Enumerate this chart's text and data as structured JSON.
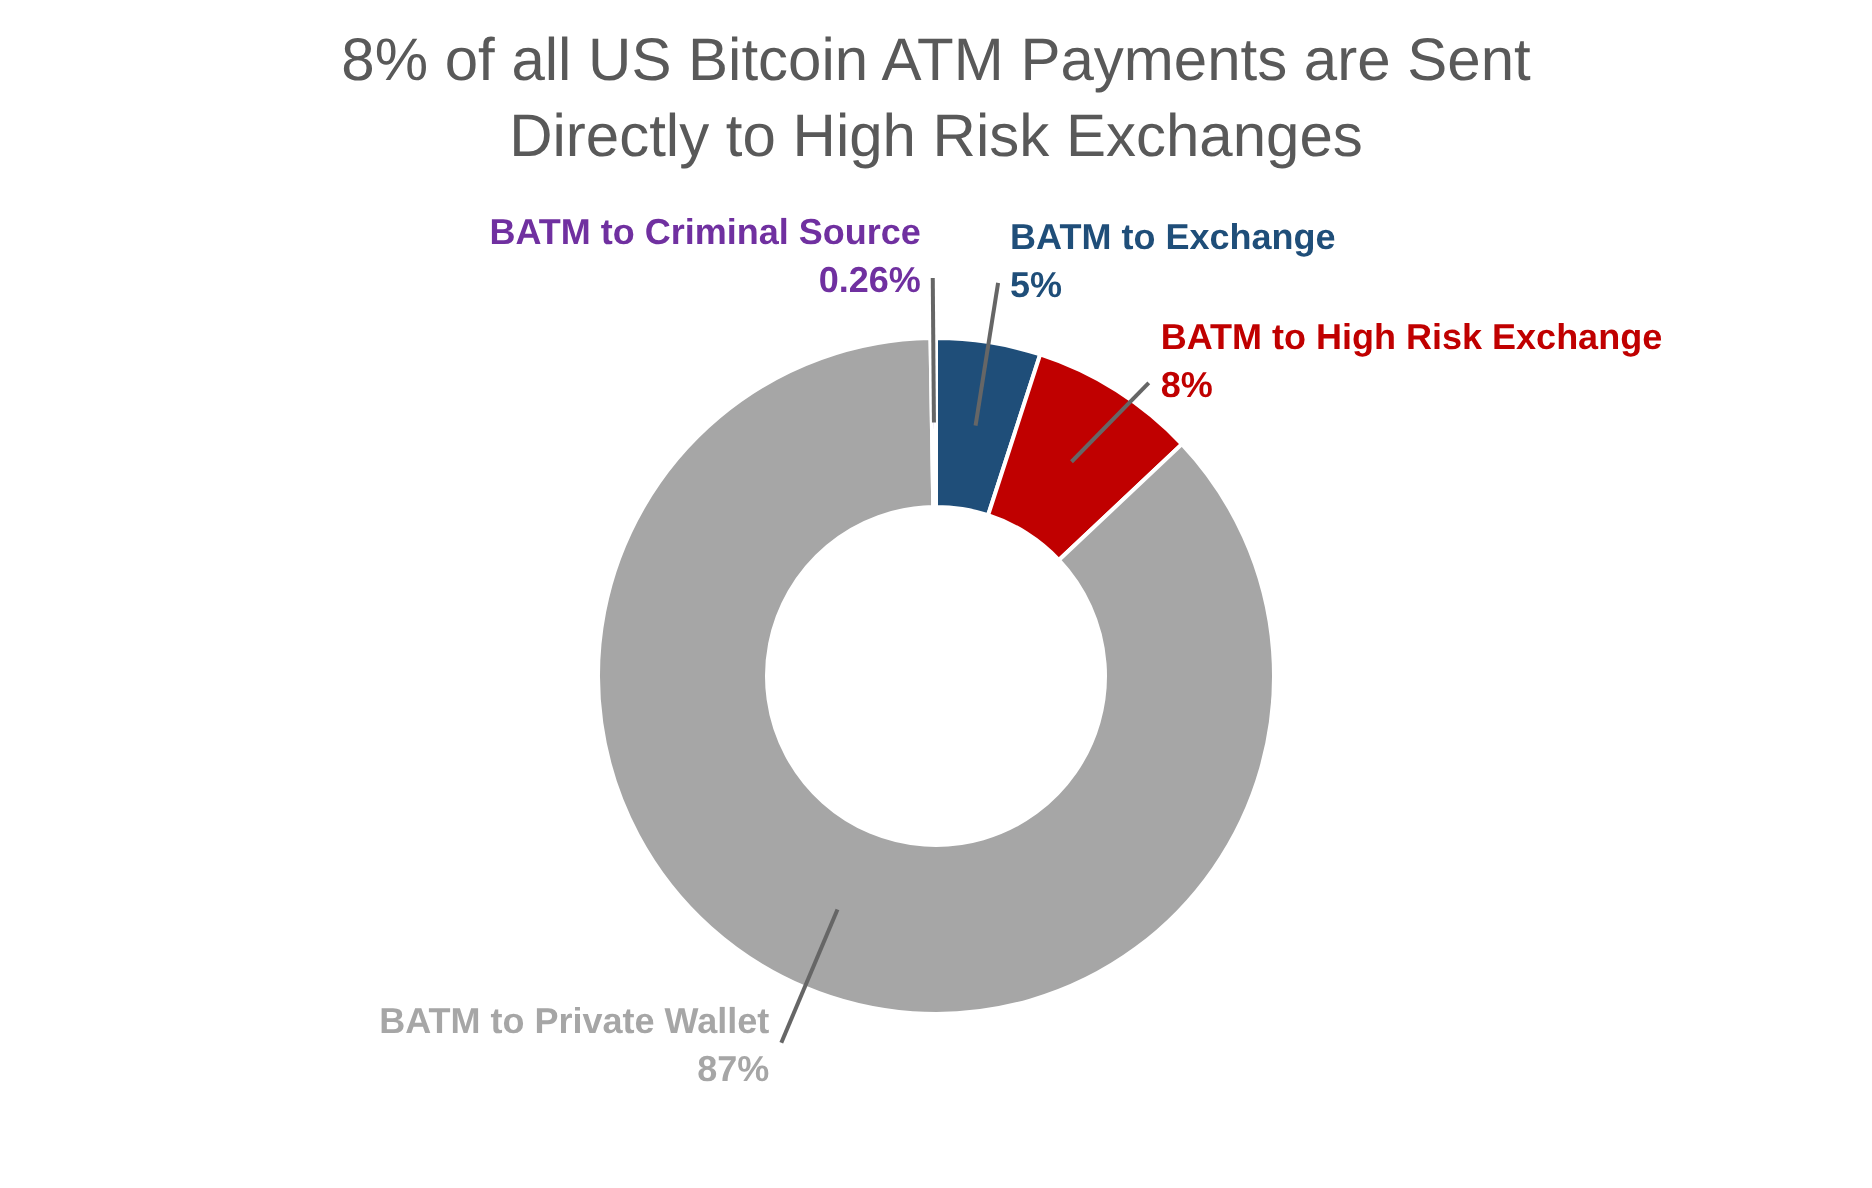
{
  "chart_data": {
    "type": "donut",
    "title": "8% of all US Bitcoin ATM Payments are Sent Directly to High Risk Exchanges",
    "categories": [
      "BATM to Exchange",
      "BATM to High Risk Exchange",
      "BATM to Private Wallet",
      "BATM to Criminal Source"
    ],
    "values": [
      5,
      8,
      87,
      0.26
    ],
    "colors": [
      "#1f4e79",
      "#c00000",
      "#a6a6a6",
      "#7030a0"
    ],
    "value_labels": [
      "5%",
      "8%",
      "87%",
      "0.26%"
    ],
    "legend": false
  }
}
